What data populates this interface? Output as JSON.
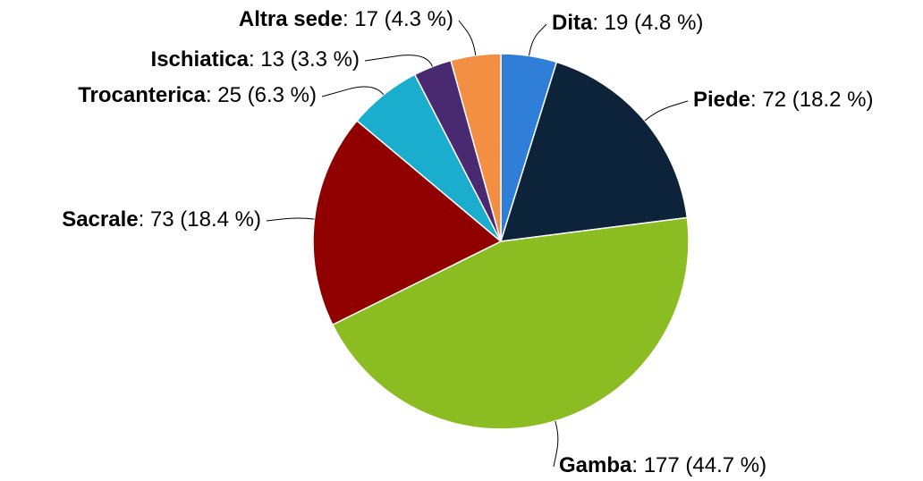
{
  "chart_data": {
    "type": "pie",
    "categories": [
      "Dita",
      "Piede",
      "Gamba",
      "Sacrale",
      "Trocanterica",
      "Ischiatica",
      "Altra sede"
    ],
    "values": [
      19,
      72,
      177,
      73,
      25,
      13,
      17
    ],
    "value_labels": [
      ": 19 (4.8 %)",
      ": 72 (18.2 %)",
      ": 177 (44.7 %)",
      ": 73 (18.4 %)",
      ": 25 (6.3 %)",
      ": 13 (3.3 %)",
      ": 17 (4.3 %)"
    ],
    "colors": [
      "#2f7ed8",
      "#0d233a",
      "#8bbc21",
      "#910000",
      "#1aadce",
      "#492970",
      "#f28f43"
    ]
  }
}
